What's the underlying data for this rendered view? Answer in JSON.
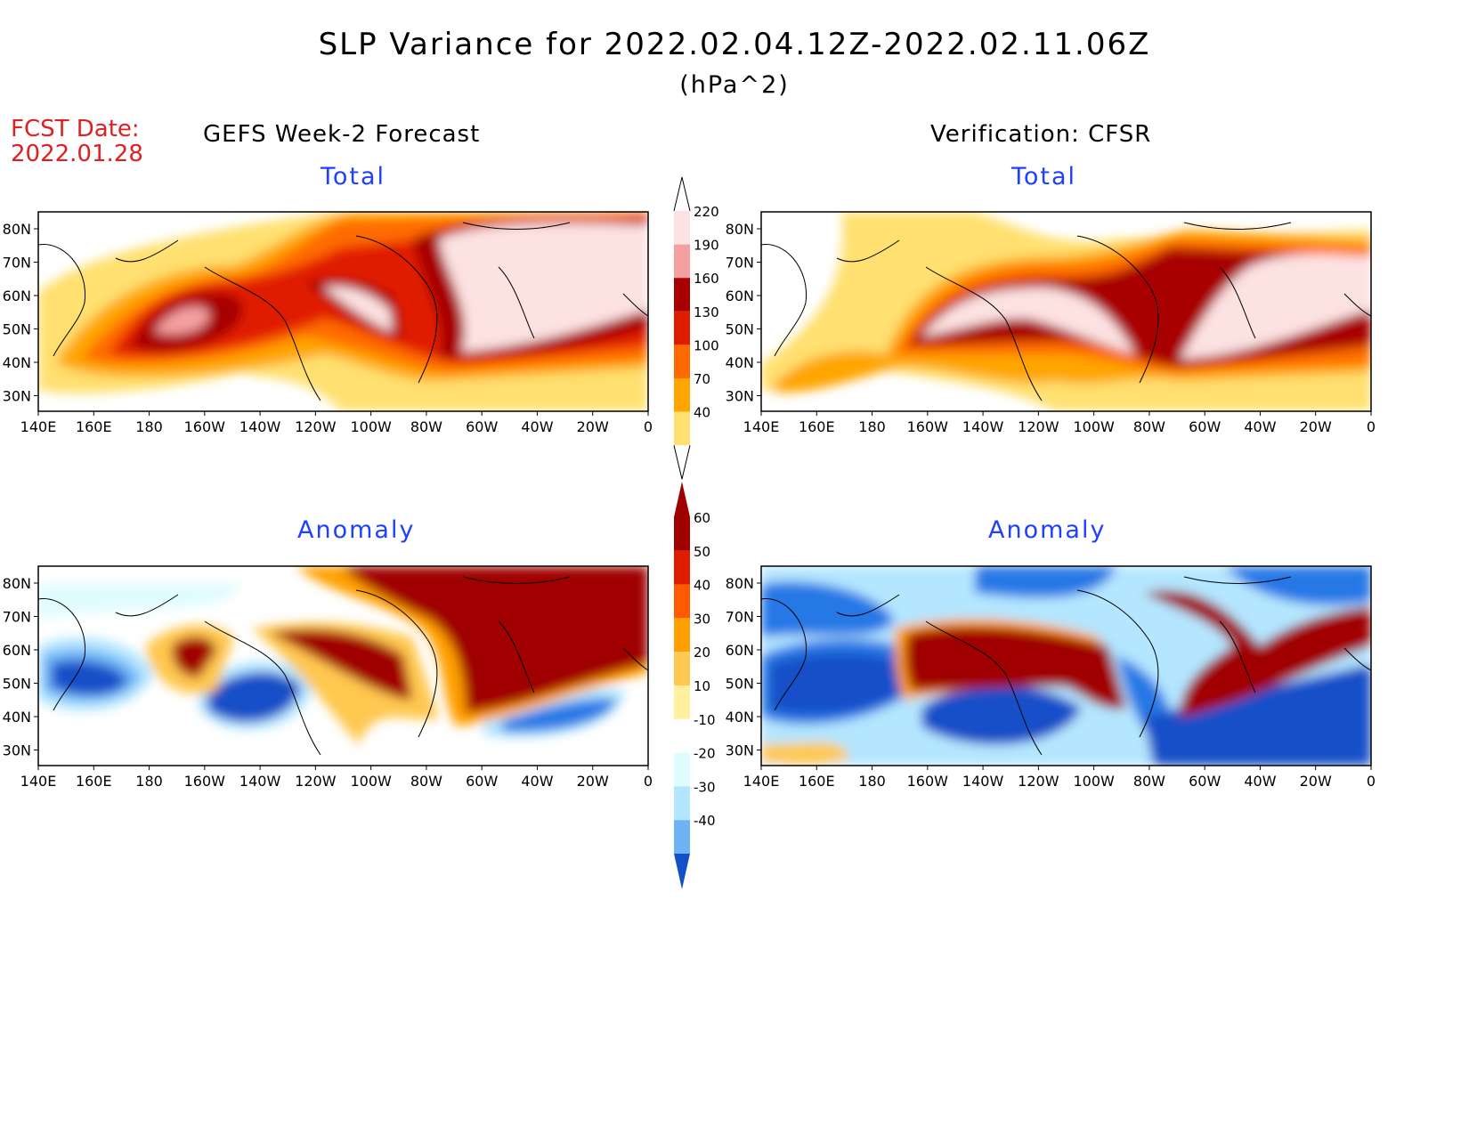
{
  "header": {
    "title": "SLP Variance for 2022.02.04.12Z-2022.02.11.06Z",
    "units": "(hPa^2)",
    "fcst_label": "FCST Date:",
    "fcst_date": "2022.01.28"
  },
  "columns": {
    "left_title": "GEFS Week-2 Forecast",
    "right_title": "Verification: CFSR"
  },
  "panels": {
    "total_label": "Total",
    "anomaly_label": "Anomaly"
  },
  "axes": {
    "lat_labels": [
      "80N",
      "70N",
      "60N",
      "50N",
      "40N",
      "30N"
    ],
    "lon_labels": [
      "140E",
      "160E",
      "180",
      "160W",
      "140W",
      "120W",
      "100W",
      "80W",
      "60W",
      "40W",
      "20W",
      "0"
    ]
  },
  "colorbars": {
    "total": {
      "levels": [
        "220",
        "190",
        "160",
        "130",
        "100",
        "70",
        "40"
      ],
      "colors": [
        "#fde2e2",
        "#f4a0a0",
        "#a80000",
        "#e01c00",
        "#ff6a00",
        "#ffa500",
        "#ffe070"
      ]
    },
    "anomaly": {
      "levels": [
        "60",
        "50",
        "40",
        "30",
        "20",
        "10",
        "-10",
        "-20",
        "-30",
        "-40"
      ],
      "warm_colors": [
        "#a00000",
        "#e01c00",
        "#ff5a00",
        "#ffa000",
        "#ffc850",
        "#fff0a0"
      ],
      "cool_colors": [
        "#e0fcff",
        "#b4e6ff",
        "#6eb4f5",
        "#2878e6",
        "#1450c8"
      ]
    }
  }
}
